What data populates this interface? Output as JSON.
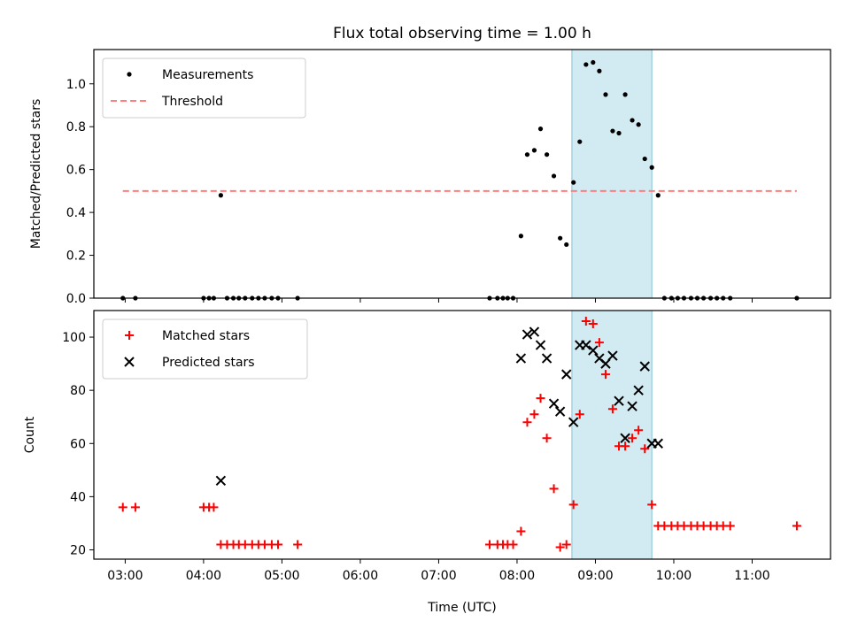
{
  "chart_data": {
    "title": "Flux total observing time = 1.00 h",
    "xlabel": "Time (UTC)",
    "x_ticks": [
      "03:00",
      "04:00",
      "05:00",
      "06:00",
      "07:00",
      "08:00",
      "09:00",
      "10:00",
      "11:00"
    ],
    "x_range_hours": [
      2.6,
      12.0
    ],
    "highlight_span_hours": [
      8.7,
      9.72
    ],
    "highlight_color": "#add8e6",
    "panels": [
      {
        "type": "scatter",
        "ylabel": "Matched/Predicted stars",
        "ylim": [
          0,
          1.16
        ],
        "y_ticks": [
          0.0,
          0.2,
          0.4,
          0.6,
          0.8,
          1.0
        ],
        "y_tick_labels": [
          "0.0",
          "0.2",
          "0.4",
          "0.6",
          "0.8",
          "1.0"
        ],
        "legend_position": "top-left",
        "series": [
          {
            "name": "Measurements",
            "marker": "dot",
            "color": "#000000",
            "points": [
              [
                2.97,
                0
              ],
              [
                3.13,
                0
              ],
              [
                4.0,
                0
              ],
              [
                4.07,
                0
              ],
              [
                4.13,
                0
              ],
              [
                4.22,
                0.48
              ],
              [
                4.3,
                0
              ],
              [
                4.38,
                0
              ],
              [
                4.45,
                0
              ],
              [
                4.53,
                0
              ],
              [
                4.62,
                0
              ],
              [
                4.7,
                0
              ],
              [
                4.78,
                0
              ],
              [
                4.87,
                0
              ],
              [
                4.95,
                0
              ],
              [
                5.2,
                0
              ],
              [
                7.65,
                0
              ],
              [
                7.75,
                0
              ],
              [
                7.82,
                0
              ],
              [
                7.88,
                0
              ],
              [
                7.95,
                0
              ],
              [
                8.05,
                0.29
              ],
              [
                8.13,
                0.67
              ],
              [
                8.22,
                0.69
              ],
              [
                8.3,
                0.79
              ],
              [
                8.38,
                0.67
              ],
              [
                8.47,
                0.57
              ],
              [
                8.55,
                0.28
              ],
              [
                8.63,
                0.25
              ],
              [
                8.72,
                0.54
              ],
              [
                8.8,
                0.73
              ],
              [
                8.88,
                1.09
              ],
              [
                8.97,
                1.1
              ],
              [
                9.05,
                1.06
              ],
              [
                9.13,
                0.95
              ],
              [
                9.22,
                0.78
              ],
              [
                9.3,
                0.77
              ],
              [
                9.38,
                0.95
              ],
              [
                9.47,
                0.83
              ],
              [
                9.55,
                0.81
              ],
              [
                9.63,
                0.65
              ],
              [
                9.72,
                0.61
              ],
              [
                9.8,
                0.48
              ],
              [
                9.88,
                0
              ],
              [
                9.97,
                0
              ],
              [
                10.05,
                0
              ],
              [
                10.13,
                0
              ],
              [
                10.22,
                0
              ],
              [
                10.3,
                0
              ],
              [
                10.38,
                0
              ],
              [
                10.47,
                0
              ],
              [
                10.55,
                0
              ],
              [
                10.63,
                0
              ],
              [
                10.72,
                0
              ],
              [
                11.57,
                0
              ]
            ]
          },
          {
            "name": "Threshold",
            "marker": "dashed-line",
            "color": "#ff7f7f",
            "x_range": [
              2.97,
              11.57
            ],
            "value": 0.5
          }
        ]
      },
      {
        "type": "scatter",
        "ylabel": "Count",
        "ylim": [
          16.5,
          110
        ],
        "y_ticks": [
          20,
          40,
          60,
          80,
          100
        ],
        "y_tick_labels": [
          "20",
          "40",
          "60",
          "80",
          "100"
        ],
        "legend_position": "top-left",
        "series": [
          {
            "name": "Matched stars",
            "marker": "plus",
            "color": "#ff0000",
            "points": [
              [
                2.97,
                36
              ],
              [
                3.13,
                36
              ],
              [
                4.0,
                36
              ],
              [
                4.07,
                36
              ],
              [
                4.13,
                36
              ],
              [
                4.22,
                22
              ],
              [
                4.3,
                22
              ],
              [
                4.38,
                22
              ],
              [
                4.45,
                22
              ],
              [
                4.53,
                22
              ],
              [
                4.62,
                22
              ],
              [
                4.7,
                22
              ],
              [
                4.78,
                22
              ],
              [
                4.87,
                22
              ],
              [
                4.95,
                22
              ],
              [
                5.2,
                22
              ],
              [
                7.65,
                22
              ],
              [
                7.75,
                22
              ],
              [
                7.82,
                22
              ],
              [
                7.88,
                22
              ],
              [
                7.95,
                22
              ],
              [
                8.05,
                27
              ],
              [
                8.13,
                68
              ],
              [
                8.22,
                71
              ],
              [
                8.3,
                77
              ],
              [
                8.38,
                62
              ],
              [
                8.47,
                43
              ],
              [
                8.55,
                21
              ],
              [
                8.63,
                22
              ],
              [
                8.72,
                37
              ],
              [
                8.8,
                71
              ],
              [
                8.88,
                106
              ],
              [
                8.97,
                105
              ],
              [
                9.05,
                98
              ],
              [
                9.13,
                86
              ],
              [
                9.22,
                73
              ],
              [
                9.3,
                59
              ],
              [
                9.38,
                59
              ],
              [
                9.47,
                62
              ],
              [
                9.55,
                65
              ],
              [
                9.63,
                58
              ],
              [
                9.72,
                37
              ],
              [
                9.8,
                29
              ],
              [
                9.88,
                29
              ],
              [
                9.97,
                29
              ],
              [
                10.05,
                29
              ],
              [
                10.13,
                29
              ],
              [
                10.22,
                29
              ],
              [
                10.3,
                29
              ],
              [
                10.38,
                29
              ],
              [
                10.47,
                29
              ],
              [
                10.55,
                29
              ],
              [
                10.63,
                29
              ],
              [
                10.72,
                29
              ],
              [
                11.57,
                29
              ]
            ]
          },
          {
            "name": "Predicted stars",
            "marker": "x",
            "color": "#000000",
            "points": [
              [
                4.22,
                46
              ],
              [
                8.05,
                92
              ],
              [
                8.13,
                101
              ],
              [
                8.22,
                102
              ],
              [
                8.3,
                97
              ],
              [
                8.38,
                92
              ],
              [
                8.47,
                75
              ],
              [
                8.55,
                72
              ],
              [
                8.63,
                86
              ],
              [
                8.72,
                68
              ],
              [
                8.8,
                97
              ],
              [
                8.88,
                97
              ],
              [
                8.97,
                95
              ],
              [
                9.05,
                92
              ],
              [
                9.13,
                90
              ],
              [
                9.22,
                93
              ],
              [
                9.3,
                76
              ],
              [
                9.38,
                62
              ],
              [
                9.47,
                74
              ],
              [
                9.55,
                80
              ],
              [
                9.63,
                89
              ],
              [
                9.72,
                60
              ],
              [
                9.8,
                60
              ]
            ]
          }
        ]
      }
    ]
  }
}
